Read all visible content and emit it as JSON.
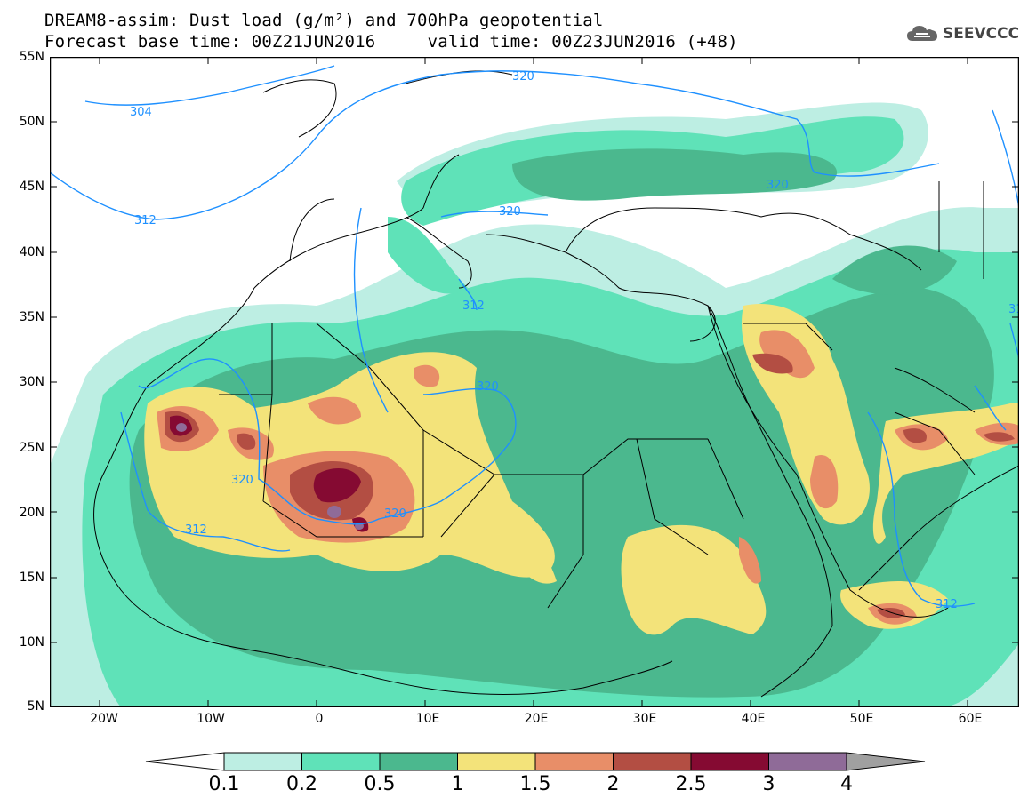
{
  "title": {
    "line1": "DREAM8-assim: Dust load (g/m²) and 700hPa geopotential",
    "line2": "Forecast base time: 00Z21JUN2016     valid time: 00Z23JUN2016 (+48)"
  },
  "logo": {
    "text": "SEEVCCC",
    "icon": "cloud-icon"
  },
  "map": {
    "lat_range": [
      5,
      55
    ],
    "lon_range": [
      -25,
      65
    ],
    "lat_labels": [
      "55N",
      "50N",
      "45N",
      "40N",
      "35N",
      "30N",
      "25N",
      "20N",
      "15N",
      "10N",
      "5N"
    ],
    "lon_labels": [
      "20W",
      "10W",
      "0",
      "10E",
      "20E",
      "30E",
      "40E",
      "50E",
      "60E"
    ],
    "contour_labels": [
      "304",
      "312",
      "320",
      "320",
      "320",
      "312",
      "320",
      "320",
      "320",
      "312",
      "312",
      "31"
    ],
    "legend": {
      "levels": [
        "0.1",
        "0.2",
        "0.5",
        "1",
        "1.5",
        "2",
        "2.5",
        "3",
        "4"
      ],
      "colors": [
        "#bdeee3",
        "#5fe2b8",
        "#4bb88e",
        "#f3e37a",
        "#e88e68",
        "#b34e43",
        "#850a32",
        "#8f6b98"
      ],
      "under_color": "#ffffff",
      "over_color": "#a0a0a0"
    }
  }
}
